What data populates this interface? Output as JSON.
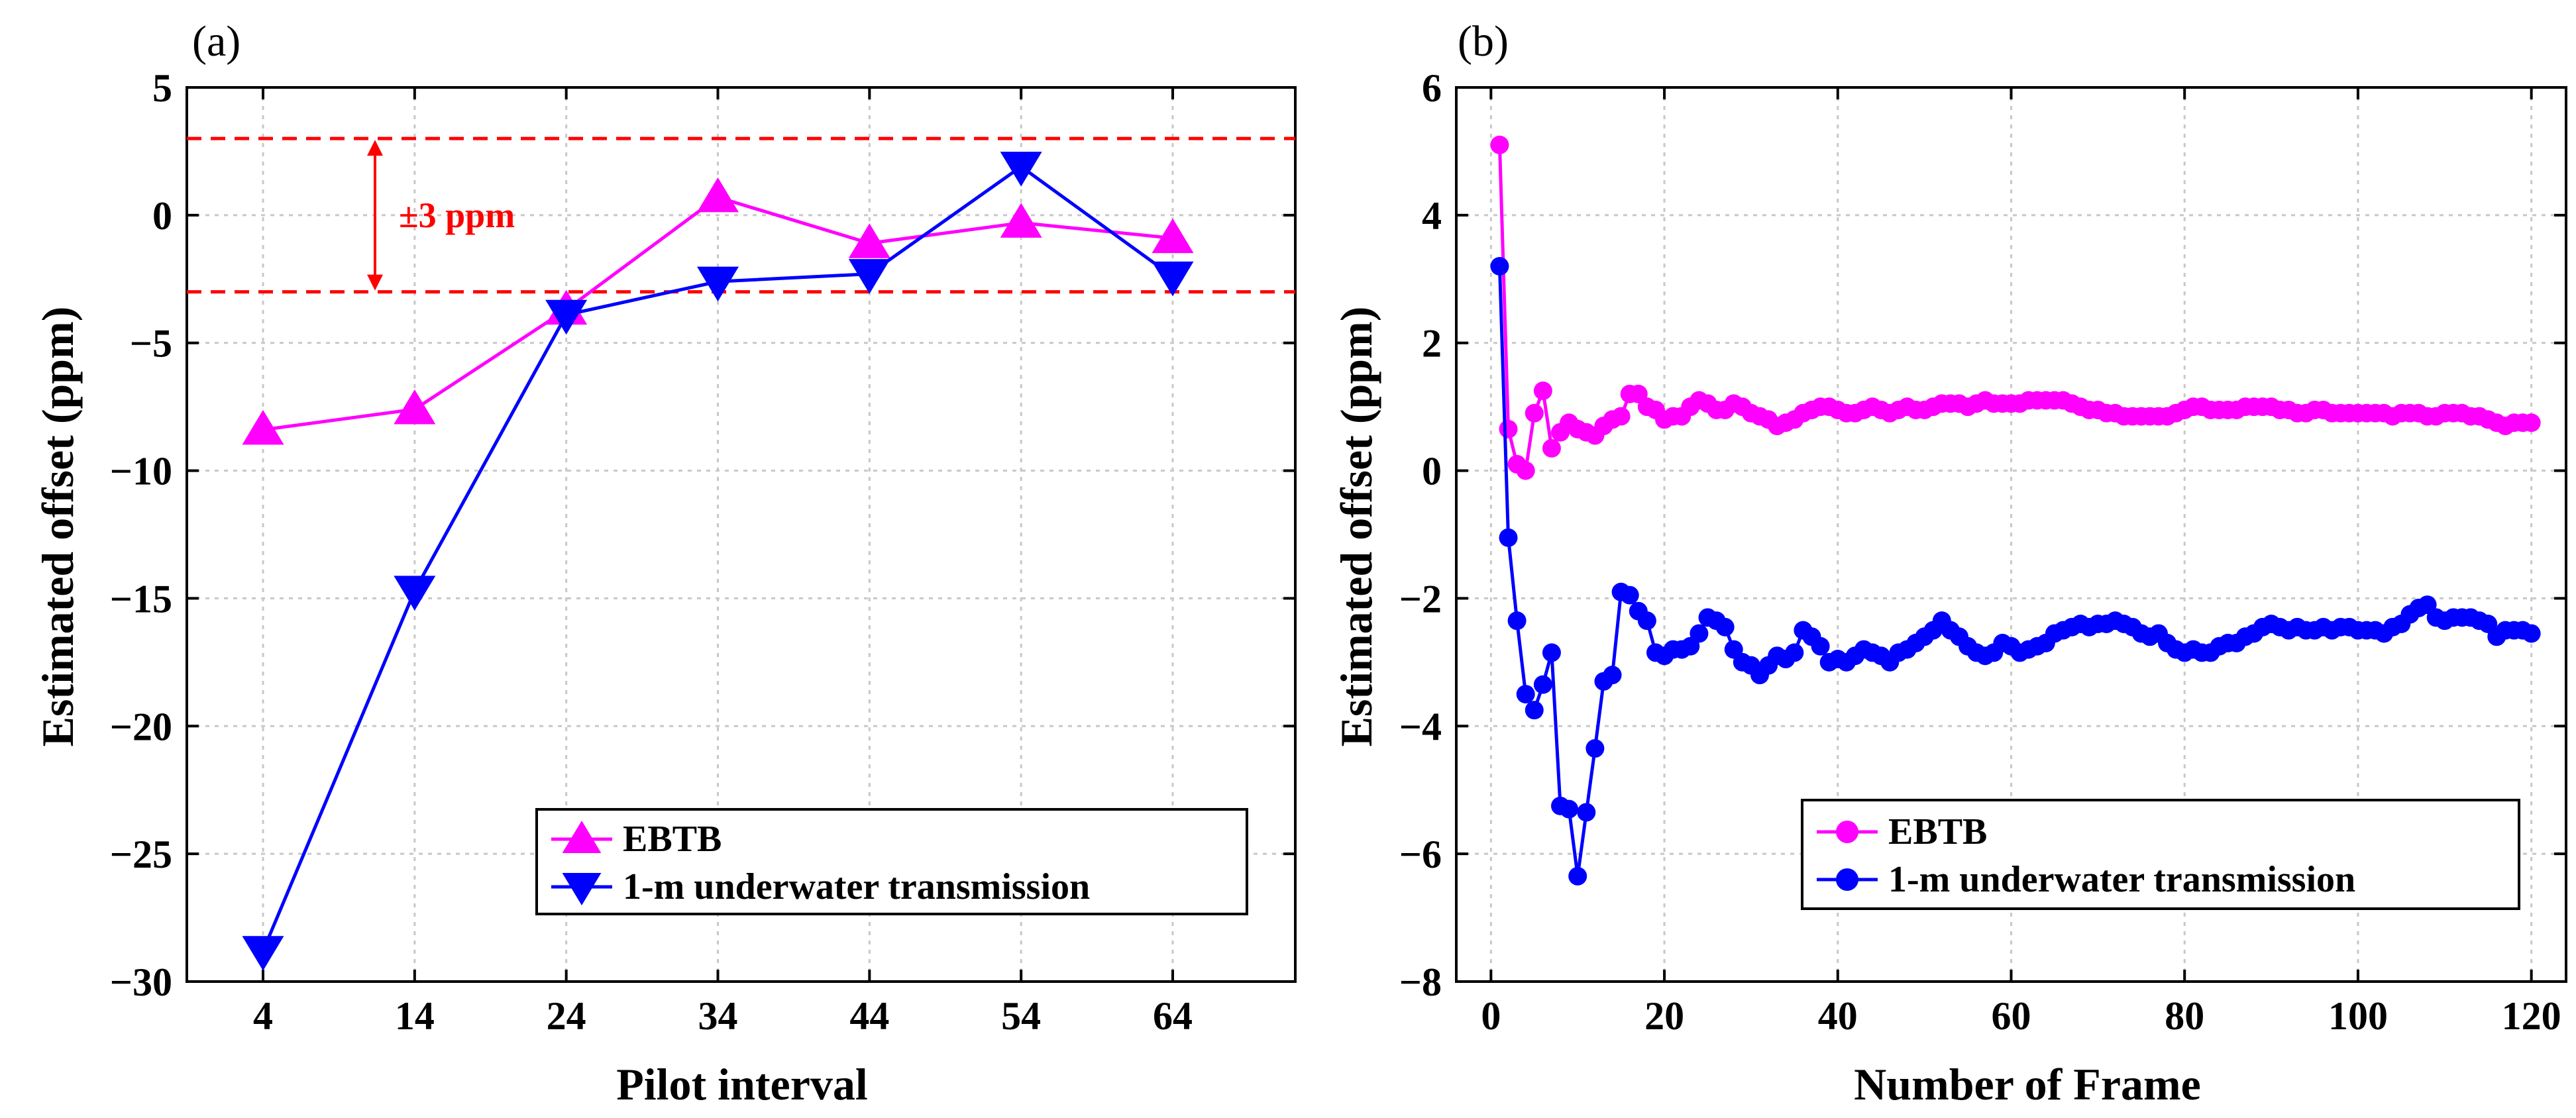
{
  "chart_data": [
    {
      "panel_label": "(a)",
      "type": "line",
      "xlabel": "Pilot interval",
      "ylabel": "Estimated offset (ppm)",
      "x_categories": [
        "4",
        "14",
        "24",
        "34",
        "44",
        "54",
        "64"
      ],
      "xlim": [
        0,
        6
      ],
      "ylim": [
        -30,
        5
      ],
      "yticks": [
        5,
        0,
        -5,
        -10,
        -15,
        -20,
        -25,
        -30
      ],
      "ytick_labels": [
        "5",
        "0",
        "−5",
        "−10",
        "−15",
        "−20",
        "−25",
        "−30"
      ],
      "grid": true,
      "series": [
        {
          "name": "EBTB",
          "color": "#ff00ff",
          "marker": "triangle-up",
          "values": [
            -8.4,
            -7.6,
            -3.7,
            0.7,
            -1.1,
            -0.3,
            -0.9
          ]
        },
        {
          "name": "1-m underwater transmission",
          "color": "#0000ff",
          "marker": "triangle-down",
          "values": [
            -28.8,
            -14.7,
            -3.9,
            -2.6,
            -2.3,
            1.9,
            -2.4
          ]
        }
      ],
      "reference_lines": {
        "values": [
          3,
          -3
        ],
        "color": "#ff0000",
        "style": "dashed"
      },
      "annotation": {
        "text": "±3 ppm",
        "color": "#ff0000"
      },
      "legend_position": "bottom-right"
    },
    {
      "panel_label": "(b)",
      "type": "line",
      "xlabel": "Number of Frame",
      "ylabel": "Estimated offset (ppm)",
      "xlim": [
        -4,
        124
      ],
      "ylim": [
        -8,
        6
      ],
      "xticks": [
        0,
        20,
        40,
        60,
        80,
        100,
        120
      ],
      "xtick_labels": [
        "0",
        "20",
        "40",
        "60",
        "80",
        "100",
        "120"
      ],
      "yticks": [
        6,
        4,
        2,
        0,
        -2,
        -4,
        -6,
        -8
      ],
      "ytick_labels": [
        "6",
        "4",
        "2",
        "0",
        "−2",
        "−4",
        "−6",
        "−8"
      ],
      "grid": true,
      "series": [
        {
          "name": "EBTB",
          "color": "#ff00ff",
          "marker": "circle",
          "x_start": 1,
          "x_step": 1,
          "values": [
            5.1,
            0.65,
            0.1,
            0.0,
            0.9,
            1.25,
            0.35,
            0.6,
            0.75,
            0.65,
            0.6,
            0.55,
            0.7,
            0.8,
            0.85,
            1.2,
            1.2,
            1.0,
            0.95,
            0.8,
            0.85,
            0.85,
            1.0,
            1.1,
            1.05,
            0.95,
            0.95,
            1.05,
            1.0,
            0.9,
            0.85,
            0.8,
            0.7,
            0.75,
            0.8,
            0.9,
            0.95,
            1.0,
            1.0,
            0.95,
            0.9,
            0.9,
            0.95,
            1.0,
            0.95,
            0.9,
            0.95,
            1.0,
            0.95,
            0.95,
            1.0,
            1.05,
            1.05,
            1.05,
            1.0,
            1.05,
            1.1,
            1.05,
            1.05,
            1.05,
            1.05,
            1.1,
            1.1,
            1.1,
            1.1,
            1.1,
            1.05,
            1.0,
            0.95,
            0.95,
            0.9,
            0.9,
            0.85,
            0.85,
            0.85,
            0.85,
            0.85,
            0.85,
            0.9,
            0.95,
            1.0,
            1.0,
            0.95,
            0.95,
            0.95,
            0.95,
            1.0,
            1.0,
            1.0,
            1.0,
            0.95,
            0.95,
            0.9,
            0.9,
            0.95,
            0.95,
            0.9,
            0.9,
            0.9,
            0.9,
            0.9,
            0.9,
            0.9,
            0.85,
            0.9,
            0.9,
            0.9,
            0.85,
            0.85,
            0.9,
            0.9,
            0.9,
            0.85,
            0.85,
            0.8,
            0.75,
            0.7,
            0.75,
            0.75,
            0.75
          ]
        },
        {
          "name": "1-m underwater transmission",
          "color": "#0000ff",
          "marker": "circle",
          "x_start": 1,
          "x_step": 1,
          "values": [
            3.2,
            -1.05,
            -2.35,
            -3.5,
            -3.75,
            -3.35,
            -2.85,
            -5.25,
            -5.3,
            -6.35,
            -5.35,
            -4.35,
            -3.3,
            -3.2,
            -1.9,
            -1.95,
            -2.2,
            -2.35,
            -2.85,
            -2.9,
            -2.8,
            -2.8,
            -2.75,
            -2.55,
            -2.3,
            -2.35,
            -2.45,
            -2.8,
            -3.0,
            -3.05,
            -3.2,
            -3.05,
            -2.9,
            -2.95,
            -2.85,
            -2.5,
            -2.6,
            -2.75,
            -3.0,
            -2.95,
            -3.0,
            -2.9,
            -2.8,
            -2.85,
            -2.9,
            -3.0,
            -2.85,
            -2.8,
            -2.7,
            -2.6,
            -2.5,
            -2.35,
            -2.5,
            -2.6,
            -2.75,
            -2.85,
            -2.9,
            -2.85,
            -2.7,
            -2.75,
            -2.85,
            -2.8,
            -2.75,
            -2.7,
            -2.55,
            -2.5,
            -2.45,
            -2.4,
            -2.45,
            -2.4,
            -2.4,
            -2.35,
            -2.4,
            -2.45,
            -2.55,
            -2.6,
            -2.55,
            -2.7,
            -2.8,
            -2.85,
            -2.8,
            -2.85,
            -2.85,
            -2.75,
            -2.7,
            -2.7,
            -2.6,
            -2.55,
            -2.45,
            -2.4,
            -2.45,
            -2.5,
            -2.45,
            -2.5,
            -2.5,
            -2.45,
            -2.5,
            -2.45,
            -2.45,
            -2.5,
            -2.5,
            -2.5,
            -2.55,
            -2.45,
            -2.4,
            -2.25,
            -2.15,
            -2.1,
            -2.3,
            -2.35,
            -2.3,
            -2.3,
            -2.3,
            -2.35,
            -2.4,
            -2.6,
            -2.5,
            -2.5,
            -2.5,
            -2.55
          ]
        }
      ],
      "legend_position": "bottom-right"
    }
  ]
}
